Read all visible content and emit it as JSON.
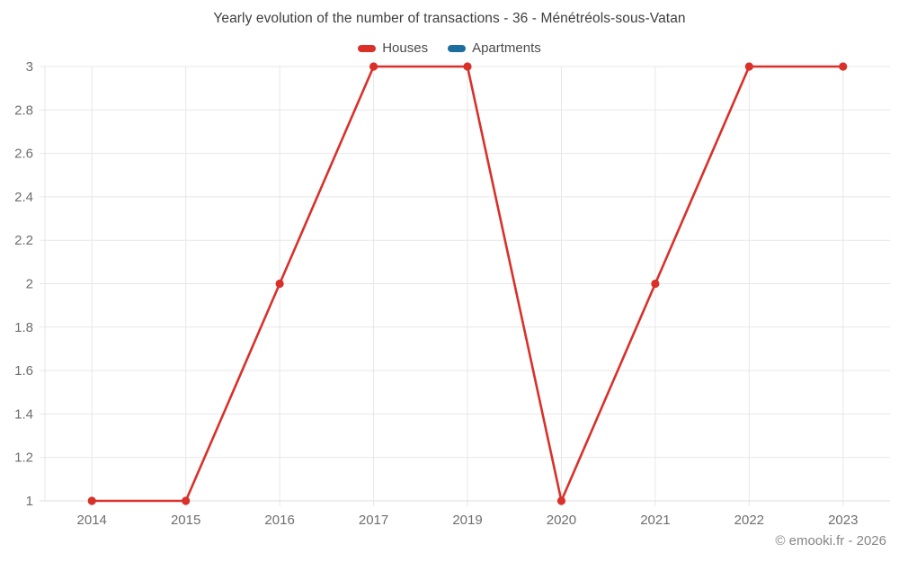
{
  "chart": {
    "title": "Yearly evolution of the number of transactions - 36 - Ménétréols-sous-Vatan",
    "footer": "© emooki.fr - 2026"
  },
  "legend": {
    "items": [
      {
        "label": "Houses",
        "color": "#d9302a"
      },
      {
        "label": "Apartments",
        "color": "#1c6e9f"
      }
    ]
  },
  "chart_data": {
    "type": "line",
    "title": "Yearly evolution of the number of transactions - 36 - Ménétréols-sous-Vatan",
    "categories": [
      "2014",
      "2015",
      "2016",
      "2017",
      "2019",
      "2020",
      "2021",
      "2022",
      "2023"
    ],
    "series": [
      {
        "name": "Houses",
        "color": "#d9302a",
        "values": [
          1,
          1,
          2,
          3,
          3,
          1,
          2,
          3,
          3
        ]
      },
      {
        "name": "Apartments",
        "color": "#1c6e9f",
        "values": []
      }
    ],
    "xlabel": "",
    "ylabel": "",
    "ylim": [
      1,
      3
    ],
    "ytick_step": 0.2,
    "ytick_labels": [
      "1",
      "1.2",
      "1.4",
      "1.6",
      "1.8",
      "2",
      "2.2",
      "2.4",
      "2.6",
      "2.8",
      "3"
    ],
    "grid": true,
    "legend_position": "top",
    "grid_color": "#e7e7e7",
    "axis_line_color": "#dddddd",
    "tick_label_color": "#6e6e6e"
  }
}
